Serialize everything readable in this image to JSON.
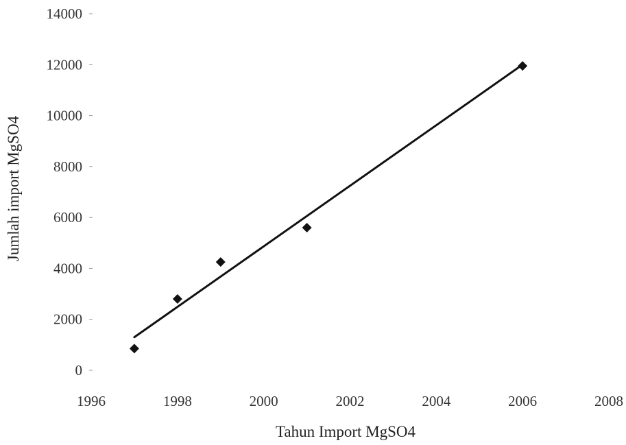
{
  "chart_data": {
    "type": "scatter",
    "title": "",
    "xlabel": "Tahun Import MgSO4",
    "ylabel": "Jumlah import MgSO4",
    "xlim": [
      1996,
      2008
    ],
    "ylim": [
      0,
      14000
    ],
    "x_ticks": [
      "1996",
      "1998",
      "2000",
      "2002",
      "2004",
      "2006",
      "2008"
    ],
    "y_ticks": [
      "0",
      "2000",
      "4000",
      "6000",
      "8000",
      "10000",
      "12000",
      "14000"
    ],
    "grid": false,
    "legend": "none",
    "points": [
      {
        "x": 1997,
        "y": 850
      },
      {
        "x": 1998,
        "y": 2800
      },
      {
        "x": 1999,
        "y": 4250
      },
      {
        "x": 2001,
        "y": 5600
      },
      {
        "x": 2006,
        "y": 11950
      }
    ],
    "trendline": {
      "x": [
        1997,
        2006
      ],
      "y": [
        1300,
        12000
      ]
    },
    "colors": {
      "marker": "#111111",
      "line": "#111111",
      "text": "#222222"
    }
  }
}
